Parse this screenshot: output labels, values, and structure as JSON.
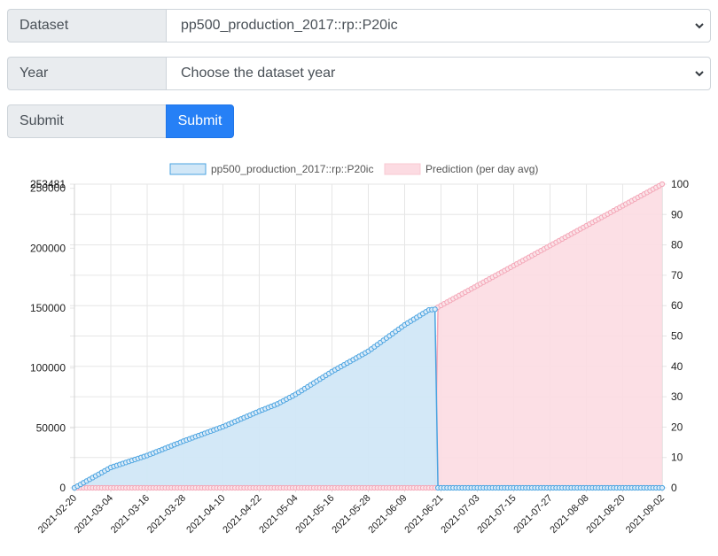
{
  "form": {
    "dataset_label": "Dataset",
    "dataset_value": "pp500_production_2017::rp::P20ic",
    "year_label": "Year",
    "year_value": "Choose the dataset year",
    "submit_label": "Submit",
    "submit_button": "Submit"
  },
  "colors": {
    "series_fill": "#d1e7f7",
    "series_line": "#4aa3e0",
    "prediction_fill": "#fcdbe2",
    "prediction_line": "#f4a6b7",
    "grid": "#e6e6e6",
    "button": "#2680f6"
  },
  "chart_data": {
    "type": "area",
    "legend_position": "top",
    "grid": true,
    "x_ticks": [
      "2021-02-20",
      "2021-03-04",
      "2021-03-16",
      "2021-03-28",
      "2021-04-10",
      "2021-04-22",
      "2021-05-04",
      "2021-05-16",
      "2021-05-28",
      "2021-06-09",
      "2021-06-21",
      "2021-07-03",
      "2021-07-15",
      "2021-07-27",
      "2021-08-08",
      "2021-08-20",
      "2021-09-02"
    ],
    "y_left": {
      "range": [
        0,
        253481
      ],
      "ticks": [
        0,
        50000,
        100000,
        150000,
        200000,
        250000
      ],
      "max_label": "253481"
    },
    "y_right": {
      "range": [
        0,
        100
      ],
      "ticks": [
        0,
        10,
        20,
        30,
        40,
        50,
        60,
        70,
        80,
        90,
        100
      ]
    },
    "series": [
      {
        "name": "pp500_production_2017::rp::P20ic",
        "axis": "left",
        "points": [
          [
            "2021-02-20",
            0
          ],
          [
            "2021-03-04",
            17000
          ],
          [
            "2021-03-16",
            27000
          ],
          [
            "2021-03-28",
            39000
          ],
          [
            "2021-04-10",
            51000
          ],
          [
            "2021-04-22",
            64000
          ],
          [
            "2021-04-28",
            70000
          ],
          [
            "2021-05-04",
            78000
          ],
          [
            "2021-05-16",
            97000
          ],
          [
            "2021-05-28",
            114000
          ],
          [
            "2021-06-09",
            136000
          ],
          [
            "2021-06-17",
            148500
          ],
          [
            "2021-06-19",
            149000
          ],
          [
            "2021-06-20",
            0
          ],
          [
            "2021-09-02",
            0
          ]
        ]
      },
      {
        "name": "Prediction (per day avg)",
        "axis": "right",
        "points": [
          [
            "2021-02-20",
            0
          ],
          [
            "2021-06-19",
            0
          ],
          [
            "2021-06-20",
            59.5
          ],
          [
            "2021-09-02",
            100
          ]
        ]
      }
    ]
  }
}
